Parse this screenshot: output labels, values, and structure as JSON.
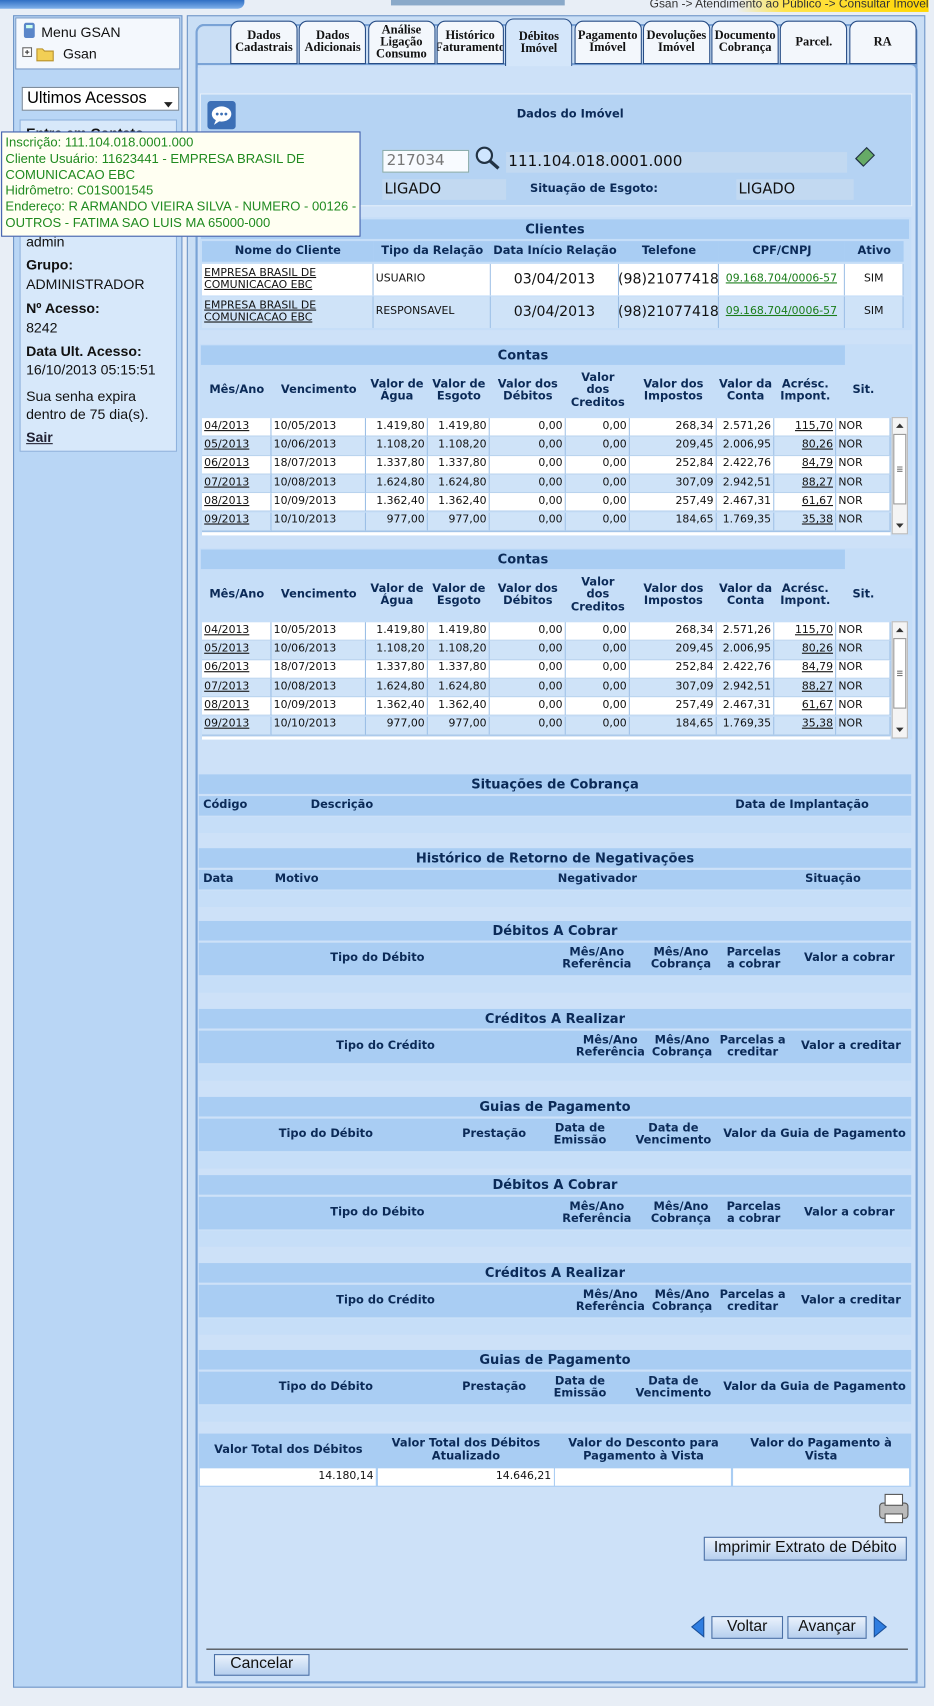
{
  "header": {
    "breadcrumb": "Gsan -> Atendimento ao Público -> Consultar Imovel"
  },
  "sidebar": {
    "menu": "Menu GSAN",
    "tree_item": "Gsan",
    "recent_select": "Ultimos Acessos",
    "contact": "Entre em Contato",
    "user": "admin",
    "group_label": "Grupo:",
    "group": "ADMINISTRADOR",
    "access_label": "Nº Acesso:",
    "access": "8242",
    "last_access_label": "Data Ult. Acesso:",
    "last_access": "16/10/2013 05:15:51",
    "password_notice": "Sua senha expira dentro de 75 dia(s).",
    "logout": "Sair"
  },
  "tooltip": {
    "lines": [
      "Inscrição: 111.104.018.0001.000",
      "Cliente Usuário: 11623441 - EMPRESA BRASIL DE COMUNICACAO EBC",
      "Hidrômetro: C01S001545",
      "Endereço: R ARMANDO VIEIRA SILVA - NUMERO - 00126 - OUTROS - FATIMA SAO LUIS MA 65000-000"
    ]
  },
  "tabs": {
    "items": [
      "Dados Cadastrais",
      "Dados Adicionais",
      "Análise Ligação Consumo",
      "Histórico Faturamento",
      "Débitos Imóvel",
      "Pagamento Imóvel",
      "Devoluções Imóvel",
      "Documento Cobrança",
      "Parcel.",
      "RA"
    ],
    "active": 4
  },
  "property": {
    "title": "Dados do Imóvel",
    "registration": "217034",
    "inscription": "111.104.018.0001.000",
    "water_status": "LIGADO",
    "sewer_label": "Situação de Esgoto:",
    "sewer_status": "LIGADO"
  },
  "clients": {
    "title": "Clientes",
    "columns": [
      "Nome do Cliente",
      "Tipo da Relação",
      "Data Início Relação",
      "Telefone",
      "CPF/CNPJ",
      "Ativo"
    ],
    "rows": [
      [
        "EMPRESA BRASIL DE COMUNICACAO EBC",
        "USUARIO",
        "03/04/2013",
        "(98)21077418",
        "09.168.704/0006-57",
        "SIM"
      ],
      [
        "EMPRESA BRASIL DE COMUNICACAO EBC",
        "RESPONSAVEL",
        "03/04/2013",
        "(98)21077418",
        "09.168.704/0006-57",
        "SIM"
      ]
    ]
  },
  "accounts": [
    {
      "title": "Contas",
      "columns": [
        "Mês/Ano",
        "Vencimento",
        "Valor de Água",
        "Valor de Esgoto",
        "Valor dos Débitos",
        "Valor dos Creditos",
        "Valor dos Impostos",
        "Valor da Conta",
        "Acrésc. Impont.",
        "Sit."
      ],
      "rows": [
        [
          "04/2013",
          "10/05/2013",
          "1.419,80",
          "1.419,80",
          "0,00",
          "0,00",
          "268,34",
          "2.571,26",
          "115,70",
          "NOR"
        ],
        [
          "05/2013",
          "10/06/2013",
          "1.108,20",
          "1.108,20",
          "0,00",
          "0,00",
          "209,45",
          "2.006,95",
          "80,26",
          "NOR"
        ],
        [
          "06/2013",
          "18/07/2013",
          "1.337,80",
          "1.337,80",
          "0,00",
          "0,00",
          "252,84",
          "2.422,76",
          "84,79",
          "NOR"
        ],
        [
          "07/2013",
          "10/08/2013",
          "1.624,80",
          "1.624,80",
          "0,00",
          "0,00",
          "307,09",
          "2.942,51",
          "88,27",
          "NOR"
        ],
        [
          "08/2013",
          "10/09/2013",
          "1.362,40",
          "1.362,40",
          "0,00",
          "0,00",
          "257,49",
          "2.467,31",
          "61,67",
          "NOR"
        ],
        [
          "09/2013",
          "10/10/2013",
          "977,00",
          "977,00",
          "0,00",
          "0,00",
          "184,65",
          "1.769,35",
          "35,38",
          "NOR"
        ]
      ]
    },
    {
      "title": "Contas",
      "columns": [
        "Mês/Ano",
        "Vencimento",
        "Valor de Água",
        "Valor de Esgoto",
        "Valor dos Débitos",
        "Valor dos Creditos",
        "Valor dos Impostos",
        "Valor da Conta",
        "Acrésc. Impont.",
        "Sit."
      ],
      "rows": [
        [
          "04/2013",
          "10/05/2013",
          "1.419,80",
          "1.419,80",
          "0,00",
          "0,00",
          "268,34",
          "2.571,26",
          "115,70",
          "NOR"
        ],
        [
          "05/2013",
          "10/06/2013",
          "1.108,20",
          "1.108,20",
          "0,00",
          "0,00",
          "209,45",
          "2.006,95",
          "80,26",
          "NOR"
        ],
        [
          "06/2013",
          "18/07/2013",
          "1.337,80",
          "1.337,80",
          "0,00",
          "0,00",
          "252,84",
          "2.422,76",
          "84,79",
          "NOR"
        ],
        [
          "07/2013",
          "10/08/2013",
          "1.624,80",
          "1.624,80",
          "0,00",
          "0,00",
          "307,09",
          "2.942,51",
          "88,27",
          "NOR"
        ],
        [
          "08/2013",
          "10/09/2013",
          "1.362,40",
          "1.362,40",
          "0,00",
          "0,00",
          "257,49",
          "2.467,31",
          "61,67",
          "NOR"
        ],
        [
          "09/2013",
          "10/10/2013",
          "977,00",
          "977,00",
          "0,00",
          "0,00",
          "184,65",
          "1.769,35",
          "35,38",
          "NOR"
        ]
      ]
    }
  ],
  "sections": [
    {
      "title": "Situações de Cobrança",
      "columns": [
        "Código",
        "Descrição",
        "Data de Implantação"
      ]
    },
    {
      "title": "Histórico de Retorno de Negativações",
      "columns": [
        "Data",
        "Motivo",
        "Negativador",
        "Situação"
      ]
    },
    {
      "title": "Débitos A Cobrar",
      "columns": [
        "Tipo do Débito",
        "Mês/Ano Referência",
        "Mês/Ano Cobrança",
        "Parcelas a cobrar",
        "Valor a cobrar"
      ]
    },
    {
      "title": "Créditos A Realizar",
      "columns": [
        "Tipo do Crédito",
        "Mês/Ano Referência",
        "Mês/Ano Cobrança",
        "Parcelas a creditar",
        "Valor a creditar"
      ]
    },
    {
      "title": "Guias de Pagamento",
      "columns": [
        "Tipo do Débito",
        "Prestação",
        "Data de Emissão",
        "Data de Vencimento",
        "Valor da Guia de Pagamento"
      ]
    },
    {
      "title": "Débitos A Cobrar",
      "columns": [
        "Tipo do Débito",
        "Mês/Ano Referência",
        "Mês/Ano Cobrança",
        "Parcelas a cobrar",
        "Valor a cobrar"
      ]
    },
    {
      "title": "Créditos A Realizar",
      "columns": [
        "Tipo do Crédito",
        "Mês/Ano Referência",
        "Mês/Ano Cobrança",
        "Parcelas a creditar",
        "Valor a creditar"
      ]
    },
    {
      "title": "Guias de Pagamento",
      "columns": [
        "Tipo do Débito",
        "Prestação",
        "Data de Emissão",
        "Data de Vencimento",
        "Valor da Guia de Pagamento"
      ]
    }
  ],
  "totals": {
    "columns": [
      "Valor Total dos Débitos",
      "Valor Total dos Débitos Atualizado",
      "Valor do Desconto para Pagamento à Vista",
      "Valor do Pagamento à Vista"
    ],
    "values": [
      "14.180,14",
      "14.646,21"
    ]
  },
  "buttons": {
    "print": "Imprimir Extrato de Débito",
    "back": "Voltar",
    "next": "Avançar",
    "cancel": "Cancelar"
  }
}
